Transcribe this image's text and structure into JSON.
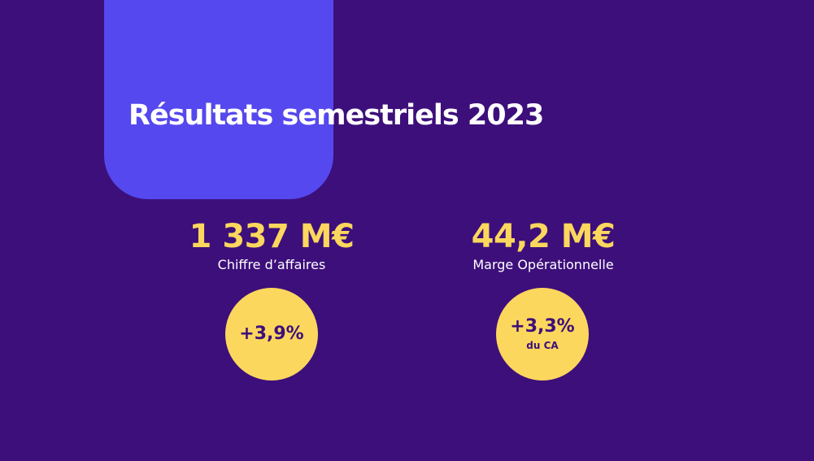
{
  "slide": {
    "title": "Résultats semestriels 2023"
  },
  "kpis": {
    "revenue": {
      "value": "1 337 M€",
      "label": "Chiffre d’affaires",
      "badge_value": "+3,9%"
    },
    "margin": {
      "value": "44,2 M€",
      "label": "Marge Opérationnelle",
      "badge_value": "+3,3%",
      "badge_sub": "du CA"
    }
  },
  "colors": {
    "background": "#3d0f7b",
    "accent_block": "#5548ee",
    "highlight_yellow": "#fcd75d",
    "text_white": "#ffffff"
  }
}
